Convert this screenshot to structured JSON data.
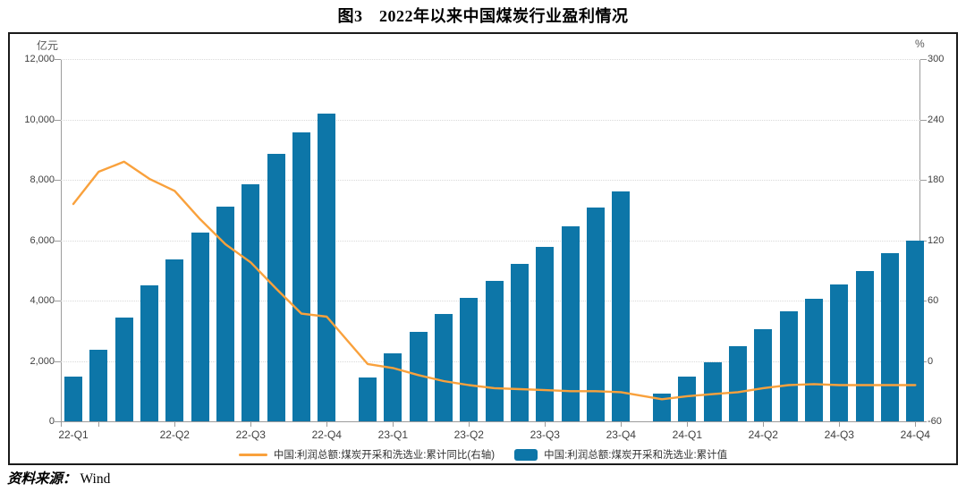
{
  "title": "图3　2022年以来中国煤炭行业盈利情况",
  "source": {
    "label": "资料来源：",
    "value": "Wind"
  },
  "colors": {
    "bar": "#0D76A8",
    "line": "#F9A13C",
    "grid": "#D9D9D9",
    "spine": "#9B9B9B",
    "frame": "#1A1A1A"
  },
  "chart_data": {
    "type": "bar+line",
    "grid": "dotted-horizontal",
    "legend_position": "bottom",
    "left_axis": {
      "unit": "亿元",
      "min": 0,
      "max": 12000,
      "step": 2000,
      "ticks": [
        {
          "value": 12000,
          "label": "12,000"
        },
        {
          "value": 10000,
          "label": "10,000"
        },
        {
          "value": 8000,
          "label": "8,000"
        },
        {
          "value": 6000,
          "label": "6,000"
        },
        {
          "value": 4000,
          "label": "4,000"
        },
        {
          "value": 2000,
          "label": "2,000"
        },
        {
          "value": 0,
          "label": "0"
        }
      ]
    },
    "right_axis": {
      "unit": "%",
      "min": -60,
      "max": 300,
      "step": 60,
      "ticks": [
        {
          "value": 300,
          "label": "300"
        },
        {
          "value": 240,
          "label": "240"
        },
        {
          "value": 180,
          "label": "180"
        },
        {
          "value": 120,
          "label": "120"
        },
        {
          "value": 60,
          "label": "60"
        },
        {
          "value": 0,
          "label": "0"
        },
        {
          "value": -60,
          "label": "-60"
        }
      ]
    },
    "x_axis": {
      "ticks": [
        {
          "label": "22-Q1",
          "index": 0
        },
        {
          "label": "22-Q2",
          "index": 4
        },
        {
          "label": "22-Q3",
          "index": 7
        },
        {
          "label": "22-Q4",
          "index": 10
        },
        {
          "label": "23-Q1",
          "index": 12
        },
        {
          "label": "23-Q2",
          "index": 15
        },
        {
          "label": "23-Q3",
          "index": 18
        },
        {
          "label": "23-Q4",
          "index": 21
        },
        {
          "label": "24-Q1",
          "index": 23
        },
        {
          "label": "24-Q2",
          "index": 26
        },
        {
          "label": "24-Q3",
          "index": 29
        },
        {
          "label": "24-Q4",
          "index": 32
        }
      ],
      "tick_mark_indices": [
        1,
        4,
        7,
        10,
        12,
        15,
        18,
        21,
        23,
        26,
        29,
        32
      ]
    },
    "categories": [
      "22-02",
      "22-03",
      "22-04",
      "22-05",
      "22-06",
      "22-07",
      "22-08",
      "22-09",
      "22-10",
      "22-11",
      "22-12",
      "23-02",
      "23-03",
      "23-04",
      "23-05",
      "23-06",
      "23-07",
      "23-08",
      "23-09",
      "23-10",
      "23-11",
      "23-12",
      "24-02",
      "24-03",
      "24-04",
      "24-05",
      "24-06",
      "24-07",
      "24-08",
      "24-09",
      "24-10",
      "24-11",
      "24-12"
    ],
    "series": [
      {
        "name": "中国:利润总额:煤炭开采和洗选业:累计同比(右轴)",
        "type": "line",
        "axis": "right",
        "color": "#F9A13C",
        "values": [
          156,
          188,
          198,
          181,
          169,
          141,
          116,
          98,
          72,
          47,
          44,
          -3,
          -7,
          -14,
          -20,
          -24,
          -27,
          -28,
          -29,
          -30,
          -30,
          -31,
          -38,
          -35,
          -33,
          -31,
          -27,
          -24,
          -23,
          -24,
          -24,
          -24,
          -24
        ]
      },
      {
        "name": "中国:利润总额:煤炭开采和洗选业:累计值",
        "type": "bar",
        "axis": "left",
        "color": "#0D76A8",
        "values": [
          1480,
          2357,
          3428,
          4505,
          5375,
          6266,
          7118,
          7856,
          8858,
          9559,
          10202,
          1444,
          2250,
          2960,
          3556,
          4103,
          4663,
          5213,
          5775,
          6465,
          7074,
          7629,
          926,
          1480,
          1946,
          2480,
          3053,
          3630,
          4050,
          4520,
          4990,
          5570,
          5985
        ]
      }
    ]
  }
}
